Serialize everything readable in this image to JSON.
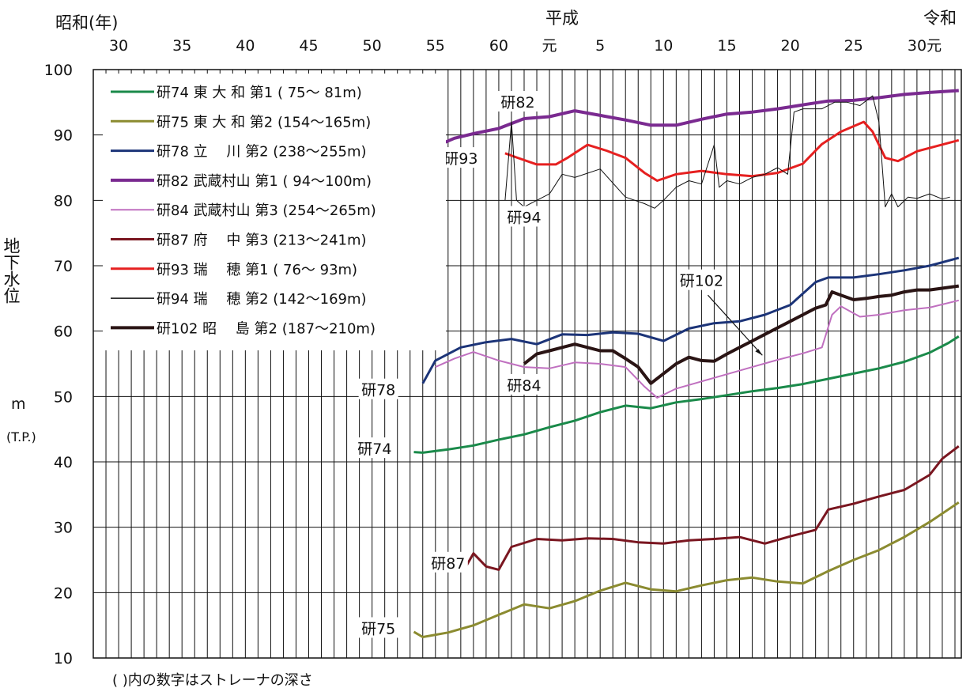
{
  "chart_data": {
    "type": "line",
    "title": "",
    "xlabel": "",
    "ylabel": "地下水位",
    "ylabel_unit": "m",
    "ylabel_unit2": "(T.P.)",
    "ylim": [
      10,
      100
    ],
    "yticks": [
      10,
      20,
      30,
      40,
      50,
      60,
      70,
      80,
      90,
      100
    ],
    "xlim": [
      1953,
      2021.5
    ],
    "grid": true,
    "legend_position": "top-left",
    "era_labels": [
      {
        "text": "昭和(年)",
        "year": 1955.5
      },
      {
        "text": "平成",
        "year": 1991.5
      },
      {
        "text": "令和",
        "year": 2020.5
      }
    ],
    "x_ticks": [
      {
        "label": "30",
        "year": 1955
      },
      {
        "label": "35",
        "year": 1960
      },
      {
        "label": "40",
        "year": 1965
      },
      {
        "label": "45",
        "year": 1970
      },
      {
        "label": "50",
        "year": 1975
      },
      {
        "label": "55",
        "year": 1980
      },
      {
        "label": "60",
        "year": 1985
      },
      {
        "label": "元",
        "year": 1989
      },
      {
        "label": "5",
        "year": 1993
      },
      {
        "label": "10",
        "year": 1998
      },
      {
        "label": "15",
        "year": 2003
      },
      {
        "label": "20",
        "year": 2008
      },
      {
        "label": "25",
        "year": 2013
      },
      {
        "label": "30元",
        "year": 2018.6
      }
    ],
    "note": "( )内の数字はストレーナの深さ",
    "series": [
      {
        "name": "研74 東 大 和 第1 ( 75〜 81m)",
        "short": "研74",
        "color": "#1a8a4a",
        "width": 3,
        "points": [
          [
            1978.3,
            41.5
          ],
          [
            1979,
            41.4
          ],
          [
            1981,
            41.9
          ],
          [
            1983,
            42.5
          ],
          [
            1985,
            43.4
          ],
          [
            1987,
            44.2
          ],
          [
            1989,
            45.3
          ],
          [
            1991,
            46.3
          ],
          [
            1993,
            47.6
          ],
          [
            1995,
            48.6
          ],
          [
            1997,
            48.2
          ],
          [
            1999,
            49.1
          ],
          [
            2001,
            49.6
          ],
          [
            2003,
            50.2
          ],
          [
            2005,
            50.8
          ],
          [
            2007,
            51.3
          ],
          [
            2009,
            51.9
          ],
          [
            2011,
            52.7
          ],
          [
            2013,
            53.5
          ],
          [
            2015,
            54.3
          ],
          [
            2017,
            55.3
          ],
          [
            2019,
            56.7
          ],
          [
            2020.5,
            58.2
          ],
          [
            2021.3,
            59.2
          ]
        ]
      },
      {
        "name": "研75 東 大 和 第2 (154〜165m)",
        "short": "研75",
        "color": "#8b8b30",
        "width": 3,
        "points": [
          [
            1978.3,
            14
          ],
          [
            1979,
            13.2
          ],
          [
            1981,
            13.9
          ],
          [
            1983,
            15
          ],
          [
            1985,
            16.6
          ],
          [
            1987,
            18.2
          ],
          [
            1989,
            17.6
          ],
          [
            1991,
            18.7
          ],
          [
            1993,
            20.3
          ],
          [
            1995,
            21.5
          ],
          [
            1997,
            20.5
          ],
          [
            1999,
            20.2
          ],
          [
            2001,
            21.1
          ],
          [
            2003,
            21.9
          ],
          [
            2005,
            22.3
          ],
          [
            2007,
            21.7
          ],
          [
            2009,
            21.4
          ],
          [
            2011,
            23.3
          ],
          [
            2013,
            25
          ],
          [
            2015,
            26.5
          ],
          [
            2017,
            28.5
          ],
          [
            2019,
            30.8
          ],
          [
            2021.3,
            33.8
          ]
        ]
      },
      {
        "name": "研78 立 　川 第2 (238〜255m)",
        "short": "研78",
        "color": "#1c3478",
        "width": 3,
        "points": [
          [
            1979,
            52
          ],
          [
            1980,
            55.5
          ],
          [
            1982,
            57.5
          ],
          [
            1984,
            58.3
          ],
          [
            1986,
            58.8
          ],
          [
            1988,
            58
          ],
          [
            1990,
            59.5
          ],
          [
            1992,
            59.4
          ],
          [
            1994,
            59.8
          ],
          [
            1996,
            59.6
          ],
          [
            1998,
            58.5
          ],
          [
            2000,
            60.4
          ],
          [
            2002,
            61.2
          ],
          [
            2004,
            61.5
          ],
          [
            2006,
            62.5
          ],
          [
            2008,
            64
          ],
          [
            2010,
            67.5
          ],
          [
            2011,
            68.2
          ],
          [
            2013,
            68.2
          ],
          [
            2015,
            68.7
          ],
          [
            2017,
            69.3
          ],
          [
            2019,
            70
          ],
          [
            2021.3,
            71.2
          ]
        ]
      },
      {
        "name": "研82 武蔵村山 第1 ( 94〜100m)",
        "short": "研82",
        "color": "#7a2a90",
        "width": 4,
        "points": [
          [
            1980.3,
            88.5
          ],
          [
            1981.5,
            89.5
          ],
          [
            1983,
            90.2
          ],
          [
            1985,
            91
          ],
          [
            1987,
            92.5
          ],
          [
            1989,
            92.8
          ],
          [
            1991,
            93.7
          ],
          [
            1993,
            93
          ],
          [
            1995,
            92.3
          ],
          [
            1997,
            91.5
          ],
          [
            1999,
            91.5
          ],
          [
            2001,
            92.4
          ],
          [
            2003,
            93.2
          ],
          [
            2005,
            93.5
          ],
          [
            2007,
            94
          ],
          [
            2009,
            94.6
          ],
          [
            2011,
            95.2
          ],
          [
            2013,
            95.3
          ],
          [
            2015,
            95.7
          ],
          [
            2017,
            96.2
          ],
          [
            2019,
            96.5
          ],
          [
            2021.3,
            96.8
          ]
        ]
      },
      {
        "name": "研84 武蔵村山 第3 (254〜265m)",
        "short": "研84",
        "color": "#c070c0",
        "width": 2,
        "points": [
          [
            1980,
            54.5
          ],
          [
            1981.5,
            55.8
          ],
          [
            1983,
            56.8
          ],
          [
            1985,
            55.5
          ],
          [
            1987,
            54.5
          ],
          [
            1989,
            54.3
          ],
          [
            1991,
            55.2
          ],
          [
            1993,
            55
          ],
          [
            1995,
            54.5
          ],
          [
            1996.5,
            51.5
          ],
          [
            1997.5,
            49.8
          ],
          [
            1999,
            51.2
          ],
          [
            2001,
            52.3
          ],
          [
            2003,
            53.4
          ],
          [
            2005,
            54.5
          ],
          [
            2007,
            55.6
          ],
          [
            2009,
            56.6
          ],
          [
            2010.5,
            57.5
          ],
          [
            2011.3,
            62.5
          ],
          [
            2012,
            63.8
          ],
          [
            2013.5,
            62.2
          ],
          [
            2015,
            62.5
          ],
          [
            2017,
            63.2
          ],
          [
            2019,
            63.6
          ],
          [
            2021.3,
            64.7
          ]
        ]
      },
      {
        "name": "研87 府 　中 第3 (213〜241m)",
        "short": "研87",
        "color": "#7a1620",
        "width": 3,
        "points": [
          [
            1982.2,
            23.3
          ],
          [
            1983,
            26
          ],
          [
            1984,
            24
          ],
          [
            1985,
            23.5
          ],
          [
            1986,
            27
          ],
          [
            1988,
            28.2
          ],
          [
            1990,
            28
          ],
          [
            1992,
            28.3
          ],
          [
            1994,
            28.2
          ],
          [
            1996,
            27.7
          ],
          [
            1998,
            27.5
          ],
          [
            2000,
            28
          ],
          [
            2002,
            28.2
          ],
          [
            2004,
            28.5
          ],
          [
            2006,
            27.5
          ],
          [
            2008,
            28.6
          ],
          [
            2010,
            29.6
          ],
          [
            2011,
            32.7
          ],
          [
            2013,
            33.6
          ],
          [
            2015,
            34.7
          ],
          [
            2017,
            35.7
          ],
          [
            2019,
            38
          ],
          [
            2020,
            40.5
          ],
          [
            2021.3,
            42.4
          ]
        ]
      },
      {
        "name": "研93 瑞 　穂 第1 ( 76〜 93m)",
        "short": "研93",
        "color": "#e62020",
        "width": 3,
        "points": [
          [
            1985.5,
            87.2
          ],
          [
            1986.5,
            86.5
          ],
          [
            1988,
            85.5
          ],
          [
            1989.5,
            85.5
          ],
          [
            1990.5,
            86.6
          ],
          [
            1992,
            88.5
          ],
          [
            1993.5,
            87.6
          ],
          [
            1995,
            86.5
          ],
          [
            1996.5,
            84.2
          ],
          [
            1997.5,
            83
          ],
          [
            1999,
            84
          ],
          [
            2001,
            84.5
          ],
          [
            2003,
            84
          ],
          [
            2005,
            83.7
          ],
          [
            2007,
            84.2
          ],
          [
            2009,
            85.6
          ],
          [
            2010.5,
            88.6
          ],
          [
            2012,
            90.5
          ],
          [
            2013.8,
            92
          ],
          [
            2014.5,
            90.5
          ],
          [
            2015.5,
            86.5
          ],
          [
            2016.5,
            86
          ],
          [
            2018,
            87.5
          ],
          [
            2021.3,
            89.2
          ]
        ]
      },
      {
        "name": "研94 瑞 　穂 第2 (142〜169m)",
        "short": "研94",
        "color": "#111111",
        "width": 1,
        "points": [
          [
            1985.5,
            80
          ],
          [
            1986,
            92
          ],
          [
            1986.4,
            80
          ],
          [
            1987,
            79
          ],
          [
            1988,
            80
          ],
          [
            1989,
            81
          ],
          [
            1990,
            84
          ],
          [
            1991,
            83.5
          ],
          [
            1993,
            84.8
          ],
          [
            1995,
            80.5
          ],
          [
            1996.5,
            79.5
          ],
          [
            1997.3,
            78.8
          ],
          [
            1998,
            80
          ],
          [
            1999,
            82
          ],
          [
            2000,
            83
          ],
          [
            2001,
            82.5
          ],
          [
            2002,
            88.5
          ],
          [
            2002.4,
            82
          ],
          [
            2003,
            83
          ],
          [
            2004,
            82.5
          ],
          [
            2005,
            83.5
          ],
          [
            2006,
            84
          ],
          [
            2007,
            85
          ],
          [
            2007.8,
            84
          ],
          [
            2008.3,
            93.5
          ],
          [
            2009,
            94
          ],
          [
            2010.5,
            94
          ],
          [
            2011.5,
            95
          ],
          [
            2012.5,
            95
          ],
          [
            2013.5,
            94.5
          ],
          [
            2014.5,
            96
          ],
          [
            2015,
            92
          ],
          [
            2015.5,
            79
          ],
          [
            2016,
            81
          ],
          [
            2016.5,
            79
          ],
          [
            2017.3,
            80.5
          ],
          [
            2018,
            80.3
          ],
          [
            2019,
            81
          ],
          [
            2020,
            80.2
          ],
          [
            2020.6,
            80.5
          ]
        ]
      },
      {
        "name": "研102 昭 　島 第2 (187〜210m)",
        "short": "研102",
        "color": "#2a1414",
        "width": 4,
        "points": [
          [
            1987,
            55
          ],
          [
            1988,
            56.5
          ],
          [
            1989,
            57
          ],
          [
            1990,
            57.5
          ],
          [
            1991,
            58
          ],
          [
            1992,
            57.5
          ],
          [
            1993,
            57
          ],
          [
            1994,
            57
          ],
          [
            1995,
            55.8
          ],
          [
            1996,
            54.5
          ],
          [
            1997,
            52
          ],
          [
            1998,
            53.5
          ],
          [
            1999,
            55
          ],
          [
            2000,
            56
          ],
          [
            2001,
            55.5
          ],
          [
            2002,
            55.4
          ],
          [
            2003,
            56.5
          ],
          [
            2004,
            57.5
          ],
          [
            2005,
            58.5
          ],
          [
            2006,
            59.5
          ],
          [
            2007,
            60.5
          ],
          [
            2008,
            61.5
          ],
          [
            2009,
            62.5
          ],
          [
            2010,
            63.5
          ],
          [
            2010.8,
            64
          ],
          [
            2011.3,
            66
          ],
          [
            2012,
            65.5
          ],
          [
            2013,
            64.8
          ],
          [
            2014,
            65
          ],
          [
            2015,
            65.3
          ],
          [
            2016,
            65.5
          ],
          [
            2017,
            66
          ],
          [
            2018,
            66.3
          ],
          [
            2019,
            66.3
          ],
          [
            2021.3,
            66.9
          ]
        ]
      }
    ],
    "annotations": [
      {
        "text": "研82",
        "x": 1986.5,
        "y": 94.8
      },
      {
        "text": "研93",
        "x": 1982,
        "y": 86.2
      },
      {
        "text": "研94",
        "x": 1987,
        "y": 77.2
      },
      {
        "text": "研102",
        "x": 2001,
        "y": 67.5
      },
      {
        "text": "研78",
        "x": 1975.5,
        "y": 50.8
      },
      {
        "text": "研84",
        "x": 1987,
        "y": 51.5
      },
      {
        "text": "研74",
        "x": 1975.2,
        "y": 41.8
      },
      {
        "text": "研87",
        "x": 1981,
        "y": 24.3
      },
      {
        "text": "研75",
        "x": 1975.5,
        "y": 14.3
      }
    ]
  }
}
